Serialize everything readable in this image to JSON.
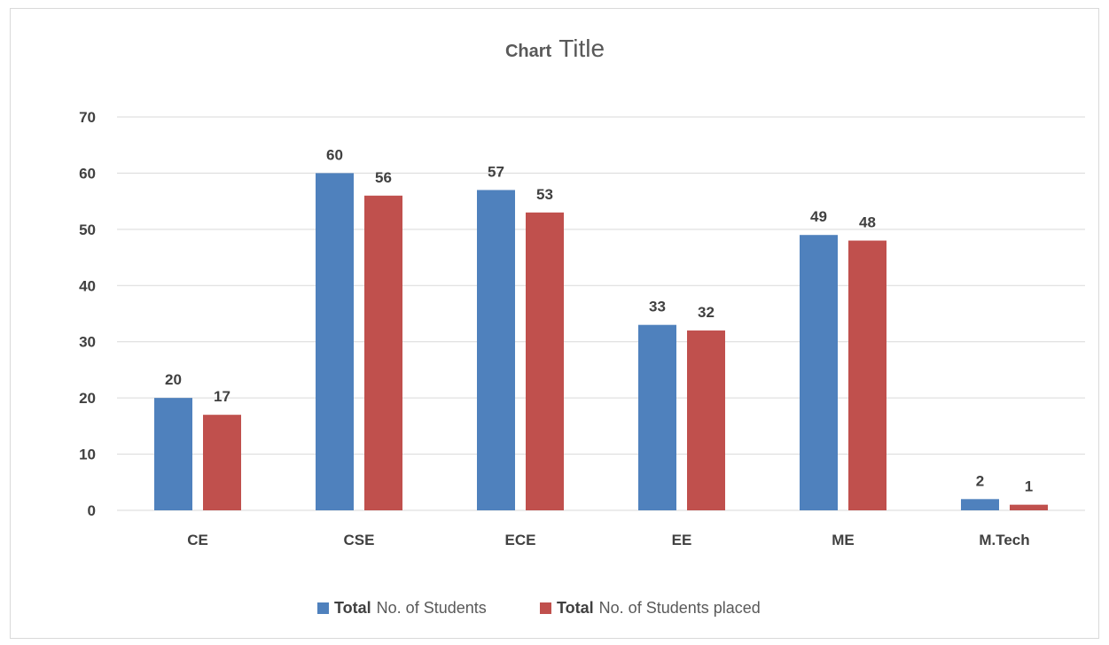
{
  "chart_data": {
    "type": "bar",
    "title": "Chart Title",
    "title_parts": {
      "bold": "Chart",
      "regular": "Title"
    },
    "categories": [
      "CE",
      "CSE",
      "ECE",
      "EE",
      "ME",
      "M.Tech"
    ],
    "series": [
      {
        "name": "Total No. of Students",
        "name_bold": "Total",
        "name_rest": "No. of Students",
        "color": "#4f81bd",
        "values": [
          20,
          60,
          57,
          33,
          49,
          2
        ]
      },
      {
        "name": "Total No. of Students placed",
        "name_bold": "Total",
        "name_rest": "No. of Students placed",
        "color": "#c0504d",
        "values": [
          17,
          56,
          53,
          32,
          48,
          1
        ]
      }
    ],
    "ylim": [
      0,
      70
    ],
    "yticks": [
      0,
      10,
      20,
      30,
      40,
      50,
      60,
      70
    ],
    "grid": true,
    "legend_position": "bottom",
    "data_labels": true
  }
}
